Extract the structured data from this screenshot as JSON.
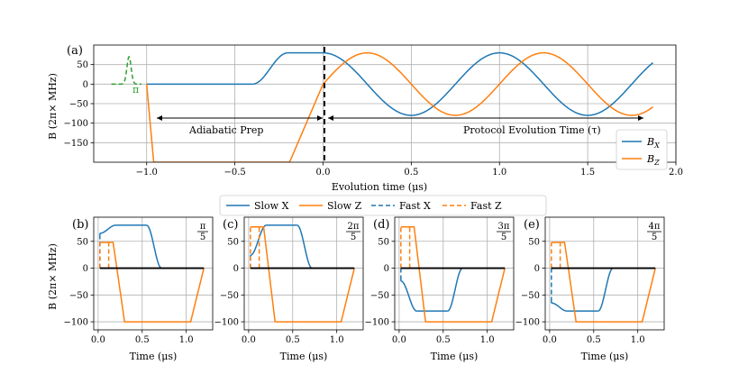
{
  "colors": {
    "x": "#1f77b4",
    "z": "#ff7f0e",
    "pi": "#2ca02c",
    "zero": "#000000"
  },
  "chart_data": [
    {
      "type": "line",
      "panel": "(a)",
      "xlabel": "Evolution time (μs)",
      "ylabel": "B (2π× MHz)",
      "xlim": [
        -1.3,
        2.0
      ],
      "ylim": [
        -200,
        100
      ],
      "xticks": [
        -1.0,
        -0.5,
        0.0,
        0.5,
        1.0,
        1.5,
        2.0
      ],
      "xticklabels": [
        "−1.0",
        "−0.5",
        "0.0",
        "0.5",
        "1.0",
        "1.5",
        "2.0"
      ],
      "yticks": [
        50,
        0,
        -50,
        -100,
        -150
      ],
      "yticklabels": [
        "50",
        "0",
        "−50",
        "−100",
        "−150"
      ],
      "grid": true,
      "legend": {
        "position": "bottom-right",
        "entries": [
          "B_X",
          "B_Z"
        ]
      },
      "legend_main": {
        "x": "B",
        "z": "B"
      },
      "legend_sub": {
        "x": "X",
        "z": "Z"
      },
      "pi_label": "π",
      "annotations": {
        "left": "Adiabatic Prep",
        "right": "Protocol Evolution Time (τ)"
      },
      "series": [
        {
          "name": "B_X",
          "segments": [
            {
              "kind": "points",
              "x": [
                -1.0,
                -0.4
              ],
              "y": [
                0,
                0
              ]
            },
            {
              "kind": "cosramp",
              "x0": -0.4,
              "x1": -0.2,
              "y0": 0,
              "y1": 80
            },
            {
              "kind": "points",
              "x": [
                -0.2,
                0.0
              ],
              "y": [
                80,
                80
              ]
            },
            {
              "kind": "cos",
              "x0": 0.0,
              "x1": 1.87,
              "amp": 80,
              "period": 1.0,
              "phase": 0
            }
          ]
        },
        {
          "name": "B_Z",
          "segments": [
            {
              "kind": "points",
              "x": [
                -1.0,
                -0.96,
                -0.19,
                0.0
              ],
              "y": [
                0,
                -200,
                -200,
                0
              ]
            },
            {
              "kind": "sin",
              "x0": 0.0,
              "x1": 1.87,
              "amp": 80,
              "period": 1.0,
              "phase": 0
            }
          ]
        },
        {
          "name": "pi_pulse",
          "segments": [
            {
              "kind": "gauss",
              "x0": -1.2,
              "x1": -1.03,
              "base": 0,
              "amp": 70,
              "center": -1.1,
              "sigma": 0.012
            }
          ]
        }
      ]
    },
    {
      "type": "line",
      "panel": "(b)",
      "fraction": {
        "num": "π",
        "den": "5"
      },
      "xlabel": "Time (μs)",
      "ylabel": "B (2π× MHz)",
      "xlim": [
        -0.05,
        1.3
      ],
      "ylim": [
        -115,
        95
      ],
      "xticks": [
        0.0,
        0.5,
        1.0
      ],
      "xticklabels": [
        "0.0",
        "0.5",
        "1.0"
      ],
      "yticks": [
        50,
        0,
        -50,
        -100
      ],
      "yticklabels": [
        "50",
        "0",
        "−50",
        "−100"
      ],
      "series": [
        {
          "name": "Slow X",
          "segments": [
            {
              "kind": "points",
              "x": [
                0.02,
                0.02
              ],
              "y": [
                62,
                65
              ]
            },
            {
              "kind": "cosramp",
              "x0": 0.02,
              "x1": 0.2,
              "y0": 65,
              "y1": 80
            },
            {
              "kind": "points",
              "x": [
                0.2,
                0.55
              ],
              "y": [
                80,
                80
              ]
            },
            {
              "kind": "cosramp",
              "x0": 0.55,
              "x1": 0.72,
              "y0": 80,
              "y1": 0
            }
          ]
        },
        {
          "name": "Slow Z",
          "segments": [
            {
              "kind": "points",
              "x": [
                0.02,
                0.17,
                0.3,
                1.05,
                1.2
              ],
              "y": [
                48,
                48,
                -100,
                -100,
                0
              ]
            }
          ]
        },
        {
          "name": "Fast X",
          "dashed": true,
          "segments": [
            {
              "kind": "points",
              "x": [
                0.02,
                0.02
              ],
              "y": [
                0,
                62
              ]
            }
          ]
        },
        {
          "name": "Fast Z",
          "dashed": true,
          "segments": [
            {
              "kind": "points",
              "x": [
                0.02,
                0.02
              ],
              "y": [
                0,
                48
              ]
            },
            {
              "kind": "points",
              "x": [
                0.12,
                0.12
              ],
              "y": [
                0,
                48
              ]
            }
          ]
        },
        {
          "name": "zero",
          "segments": [
            {
              "kind": "points",
              "x": [
                0.02,
                1.2
              ],
              "y": [
                0,
                0
              ]
            }
          ]
        }
      ]
    },
    {
      "type": "line",
      "panel": "(c)",
      "fraction": {
        "num": "2π",
        "den": "5"
      },
      "xlabel": "Time (μs)",
      "ylabel": "",
      "xlim": [
        -0.05,
        1.3
      ],
      "ylim": [
        -115,
        95
      ],
      "xticks": [
        0.0,
        0.5,
        1.0
      ],
      "xticklabels": [
        "0.0",
        "0.5",
        "1.0"
      ],
      "yticks": [
        50,
        0,
        -50,
        -100
      ],
      "yticklabels": [
        "50",
        "0",
        "−50",
        "−100"
      ],
      "series": [
        {
          "name": "Slow X",
          "segments": [
            {
              "kind": "points",
              "x": [
                0.02,
                0.02
              ],
              "y": [
                20,
                24
              ]
            },
            {
              "kind": "cosramp",
              "x0": 0.02,
              "x1": 0.2,
              "y0": 24,
              "y1": 80
            },
            {
              "kind": "points",
              "x": [
                0.2,
                0.55
              ],
              "y": [
                80,
                80
              ]
            },
            {
              "kind": "cosramp",
              "x0": 0.55,
              "x1": 0.72,
              "y0": 80,
              "y1": 0
            }
          ]
        },
        {
          "name": "Slow Z",
          "segments": [
            {
              "kind": "points",
              "x": [
                0.02,
                0.17,
                0.3,
                1.05,
                1.2
              ],
              "y": [
                77,
                77,
                -100,
                -100,
                0
              ]
            }
          ]
        },
        {
          "name": "Fast X",
          "dashed": true,
          "segments": [
            {
              "kind": "points",
              "x": [
                0.02,
                0.02
              ],
              "y": [
                0,
                20
              ]
            }
          ]
        },
        {
          "name": "Fast Z",
          "dashed": true,
          "segments": [
            {
              "kind": "points",
              "x": [
                0.02,
                0.02
              ],
              "y": [
                0,
                77
              ]
            },
            {
              "kind": "points",
              "x": [
                0.12,
                0.12
              ],
              "y": [
                0,
                77
              ]
            }
          ]
        },
        {
          "name": "zero",
          "segments": [
            {
              "kind": "points",
              "x": [
                0.02,
                1.2
              ],
              "y": [
                0,
                0
              ]
            }
          ]
        }
      ]
    },
    {
      "type": "line",
      "panel": "(d)",
      "fraction": {
        "num": "3π",
        "den": "5"
      },
      "xlabel": "Time (μs)",
      "ylabel": "",
      "xlim": [
        -0.05,
        1.3
      ],
      "ylim": [
        -115,
        95
      ],
      "xticks": [
        0.0,
        0.5,
        1.0
      ],
      "xticklabels": [
        "0.0",
        "0.5",
        "1.0"
      ],
      "yticks": [
        50,
        0,
        -50,
        -100
      ],
      "yticklabels": [
        "50",
        "0",
        "−50",
        "−100"
      ],
      "series": [
        {
          "name": "Slow X",
          "segments": [
            {
              "kind": "points",
              "x": [
                0.02,
                0.02
              ],
              "y": [
                -20,
                -24
              ]
            },
            {
              "kind": "cosramp",
              "x0": 0.02,
              "x1": 0.2,
              "y0": -24,
              "y1": -80
            },
            {
              "kind": "points",
              "x": [
                0.2,
                0.55
              ],
              "y": [
                -80,
                -80
              ]
            },
            {
              "kind": "cosramp",
              "x0": 0.55,
              "x1": 0.72,
              "y0": -80,
              "y1": 0
            }
          ]
        },
        {
          "name": "Slow Z",
          "segments": [
            {
              "kind": "points",
              "x": [
                0.02,
                0.17,
                0.3,
                1.05,
                1.2
              ],
              "y": [
                77,
                77,
                -100,
                -100,
                0
              ]
            }
          ]
        },
        {
          "name": "Fast X",
          "dashed": true,
          "segments": [
            {
              "kind": "points",
              "x": [
                0.02,
                0.02
              ],
              "y": [
                0,
                -20
              ]
            }
          ]
        },
        {
          "name": "Fast Z",
          "dashed": true,
          "segments": [
            {
              "kind": "points",
              "x": [
                0.02,
                0.02
              ],
              "y": [
                0,
                77
              ]
            },
            {
              "kind": "points",
              "x": [
                0.12,
                0.12
              ],
              "y": [
                0,
                77
              ]
            }
          ]
        },
        {
          "name": "zero",
          "segments": [
            {
              "kind": "points",
              "x": [
                0.02,
                1.2
              ],
              "y": [
                0,
                0
              ]
            }
          ]
        }
      ]
    },
    {
      "type": "line",
      "panel": "(e)",
      "fraction": {
        "num": "4π",
        "den": "5"
      },
      "xlabel": "Time (μs)",
      "ylabel": "",
      "xlim": [
        -0.05,
        1.3
      ],
      "ylim": [
        -115,
        95
      ],
      "xticks": [
        0.0,
        0.5,
        1.0
      ],
      "xticklabels": [
        "0.0",
        "0.5",
        "1.0"
      ],
      "yticks": [
        50,
        0,
        -50,
        -100
      ],
      "yticklabels": [
        "50",
        "0",
        "−50",
        "−100"
      ],
      "series": [
        {
          "name": "Slow X",
          "segments": [
            {
              "kind": "points",
              "x": [
                0.02,
                0.02
              ],
              "y": [
                -62,
                -65
              ]
            },
            {
              "kind": "cosramp",
              "x0": 0.02,
              "x1": 0.2,
              "y0": -65,
              "y1": -80
            },
            {
              "kind": "points",
              "x": [
                0.2,
                0.55
              ],
              "y": [
                -80,
                -80
              ]
            },
            {
              "kind": "cosramp",
              "x0": 0.55,
              "x1": 0.72,
              "y0": -80,
              "y1": 0
            }
          ]
        },
        {
          "name": "Slow Z",
          "segments": [
            {
              "kind": "points",
              "x": [
                0.02,
                0.17,
                0.3,
                1.05,
                1.2
              ],
              "y": [
                48,
                48,
                -100,
                -100,
                0
              ]
            }
          ]
        },
        {
          "name": "Fast X",
          "dashed": true,
          "segments": [
            {
              "kind": "points",
              "x": [
                0.02,
                0.02
              ],
              "y": [
                0,
                -62
              ]
            }
          ]
        },
        {
          "name": "Fast Z",
          "dashed": true,
          "segments": [
            {
              "kind": "points",
              "x": [
                0.02,
                0.02
              ],
              "y": [
                0,
                48
              ]
            },
            {
              "kind": "points",
              "x": [
                0.12,
                0.12
              ],
              "y": [
                0,
                48
              ]
            }
          ]
        },
        {
          "name": "zero",
          "segments": [
            {
              "kind": "points",
              "x": [
                0.02,
                1.2
              ],
              "y": [
                0,
                0
              ]
            }
          ]
        }
      ]
    }
  ],
  "shared_legend": {
    "entries": [
      {
        "label": "Slow X",
        "color": "x",
        "dashed": false
      },
      {
        "label": "Slow Z",
        "color": "z",
        "dashed": false
      },
      {
        "label": "Fast X",
        "color": "x",
        "dashed": true
      },
      {
        "label": "Fast Z",
        "color": "z",
        "dashed": true
      }
    ]
  }
}
